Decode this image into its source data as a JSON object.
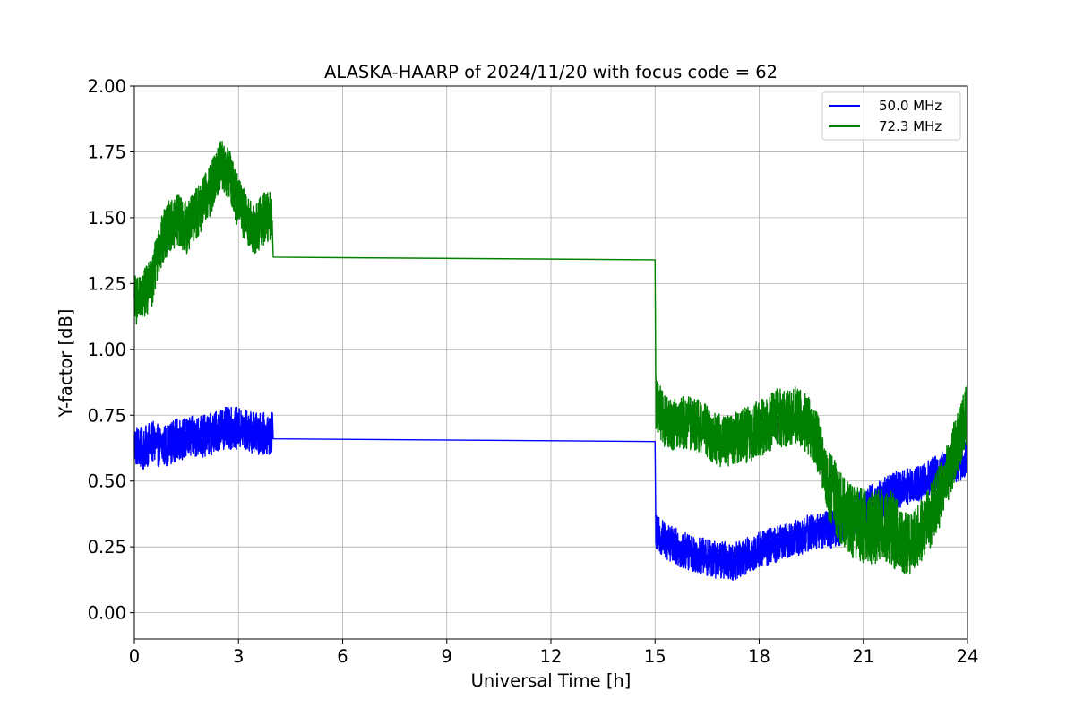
{
  "chart_data": {
    "type": "line",
    "title": "ALASKA-HAARP of 2024/11/20 with focus code = 62",
    "xlabel": "Universal Time [h]",
    "ylabel": "Y-factor [dB]",
    "xlim": [
      0,
      24
    ],
    "ylim": [
      -0.1,
      2.0
    ],
    "xticks": [
      0,
      3,
      6,
      9,
      12,
      15,
      18,
      21,
      24
    ],
    "xtick_labels": [
      "0",
      "3",
      "6",
      "9",
      "12",
      "15",
      "18",
      "21",
      "24"
    ],
    "yticks": [
      0,
      0.25,
      0.5,
      0.75,
      1.0,
      1.25,
      1.5,
      1.75,
      2.0
    ],
    "ytick_labels": [
      "0.00",
      "0.25",
      "0.50",
      "0.75",
      "1.00",
      "1.25",
      "1.50",
      "1.75",
      "2.00"
    ],
    "grid": true,
    "legend_position": "top-right",
    "series": [
      {
        "name": "50.0 MHz",
        "color": "#0000ff",
        "points": [
          [
            0.0,
            0.64
          ],
          [
            0.25,
            0.62
          ],
          [
            0.5,
            0.65
          ],
          [
            0.75,
            0.63
          ],
          [
            1.0,
            0.64
          ],
          [
            1.25,
            0.66
          ],
          [
            1.5,
            0.66
          ],
          [
            1.75,
            0.67
          ],
          [
            2.0,
            0.67
          ],
          [
            2.25,
            0.68
          ],
          [
            2.5,
            0.7
          ],
          [
            2.75,
            0.7
          ],
          [
            3.0,
            0.7
          ],
          [
            3.25,
            0.69
          ],
          [
            3.5,
            0.68
          ],
          [
            3.75,
            0.68
          ],
          [
            3.98,
            0.68
          ],
          [
            4.0,
            0.66
          ],
          [
            15.0,
            0.65
          ],
          [
            15.02,
            0.3
          ],
          [
            15.25,
            0.28
          ],
          [
            15.5,
            0.26
          ],
          [
            15.75,
            0.24
          ],
          [
            16.0,
            0.23
          ],
          [
            16.25,
            0.22
          ],
          [
            16.5,
            0.21
          ],
          [
            16.75,
            0.2
          ],
          [
            17.0,
            0.2
          ],
          [
            17.25,
            0.19
          ],
          [
            17.5,
            0.21
          ],
          [
            17.75,
            0.22
          ],
          [
            18.0,
            0.24
          ],
          [
            18.25,
            0.25
          ],
          [
            18.5,
            0.26
          ],
          [
            18.75,
            0.27
          ],
          [
            19.0,
            0.28
          ],
          [
            19.25,
            0.29
          ],
          [
            19.5,
            0.31
          ],
          [
            19.75,
            0.31
          ],
          [
            20.0,
            0.32
          ],
          [
            20.25,
            0.33
          ],
          [
            20.5,
            0.35
          ],
          [
            20.75,
            0.37
          ],
          [
            21.0,
            0.39
          ],
          [
            21.25,
            0.41
          ],
          [
            21.5,
            0.43
          ],
          [
            21.75,
            0.45
          ],
          [
            22.0,
            0.46
          ],
          [
            22.25,
            0.48
          ],
          [
            22.5,
            0.49
          ],
          [
            22.75,
            0.5
          ],
          [
            23.0,
            0.52
          ],
          [
            23.25,
            0.54
          ],
          [
            23.5,
            0.56
          ],
          [
            23.75,
            0.57
          ],
          [
            24.0,
            0.58
          ]
        ],
        "noise": [
          [
            0,
            4,
            0.08
          ],
          [
            15,
            17.5,
            0.07
          ],
          [
            17.5,
            20,
            0.07
          ],
          [
            20,
            22,
            0.08
          ],
          [
            22,
            24,
            0.07
          ]
        ]
      },
      {
        "name": "72.3 MHz",
        "color": "#008000",
        "points": [
          [
            0.0,
            1.18
          ],
          [
            0.25,
            1.21
          ],
          [
            0.5,
            1.25
          ],
          [
            0.75,
            1.4
          ],
          [
            1.0,
            1.47
          ],
          [
            1.25,
            1.49
          ],
          [
            1.5,
            1.46
          ],
          [
            1.75,
            1.51
          ],
          [
            2.0,
            1.56
          ],
          [
            2.25,
            1.62
          ],
          [
            2.5,
            1.7
          ],
          [
            2.75,
            1.66
          ],
          [
            3.0,
            1.55
          ],
          [
            3.25,
            1.49
          ],
          [
            3.5,
            1.46
          ],
          [
            3.75,
            1.5
          ],
          [
            3.98,
            1.52
          ],
          [
            4.0,
            1.35
          ],
          [
            15.0,
            1.34
          ],
          [
            15.02,
            0.8
          ],
          [
            15.25,
            0.73
          ],
          [
            15.5,
            0.71
          ],
          [
            15.75,
            0.72
          ],
          [
            16.0,
            0.72
          ],
          [
            16.25,
            0.71
          ],
          [
            16.5,
            0.69
          ],
          [
            16.75,
            0.66
          ],
          [
            17.0,
            0.65
          ],
          [
            17.25,
            0.66
          ],
          [
            17.5,
            0.67
          ],
          [
            17.75,
            0.68
          ],
          [
            18.0,
            0.7
          ],
          [
            18.25,
            0.72
          ],
          [
            18.5,
            0.74
          ],
          [
            18.75,
            0.74
          ],
          [
            19.0,
            0.75
          ],
          [
            19.25,
            0.73
          ],
          [
            19.5,
            0.7
          ],
          [
            19.75,
            0.62
          ],
          [
            20.0,
            0.48
          ],
          [
            20.25,
            0.42
          ],
          [
            20.5,
            0.37
          ],
          [
            20.75,
            0.34
          ],
          [
            21.0,
            0.33
          ],
          [
            21.25,
            0.32
          ],
          [
            21.5,
            0.34
          ],
          [
            21.75,
            0.33
          ],
          [
            22.0,
            0.29
          ],
          [
            22.25,
            0.26
          ],
          [
            22.5,
            0.28
          ],
          [
            22.75,
            0.33
          ],
          [
            23.0,
            0.38
          ],
          [
            23.25,
            0.46
          ],
          [
            23.5,
            0.56
          ],
          [
            23.75,
            0.66
          ],
          [
            24.0,
            0.76
          ]
        ],
        "noise": [
          [
            0,
            4,
            0.1
          ],
          [
            15,
            17.5,
            0.1
          ],
          [
            17.5,
            20,
            0.11
          ],
          [
            20,
            22,
            0.14
          ],
          [
            22,
            24,
            0.12
          ]
        ]
      }
    ]
  }
}
